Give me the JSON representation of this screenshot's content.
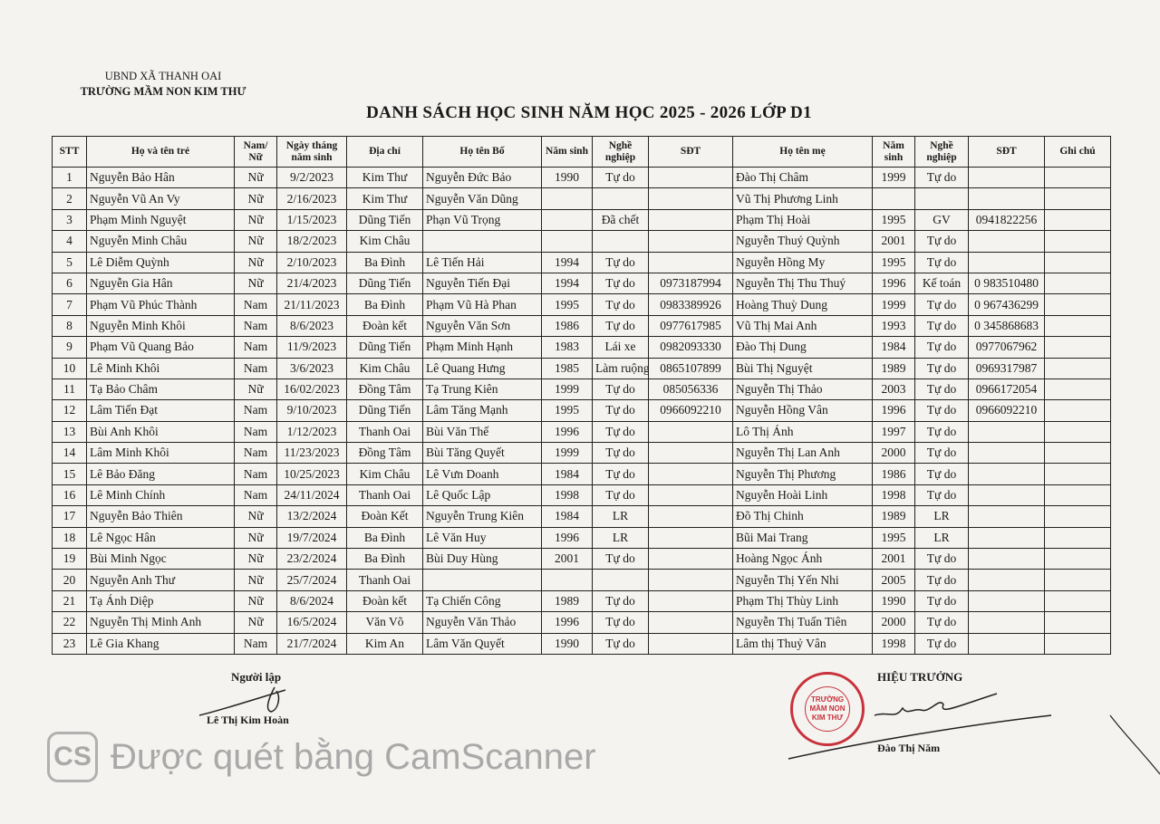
{
  "header": {
    "org_line1": "UBND XÃ THANH OAI",
    "org_line2": "TRƯỜNG MẦM NON KIM THƯ",
    "title": "DANH SÁCH HỌC SINH NĂM HỌC 2025 - 2026  LỚP  D1"
  },
  "table": {
    "columns": [
      "STT",
      "Họ và tên trẻ",
      "Nam/ Nữ",
      "Ngày tháng năm sinh",
      "Địa chỉ",
      "Họ tên Bố",
      "Năm sinh",
      "Nghề nghiệp",
      "SĐT",
      "Họ tên mẹ",
      "Năm sinh",
      "Nghề nghiệp",
      "SĐT",
      "Ghi chú"
    ],
    "rows": [
      [
        "1",
        "Nguyễn Bảo Hân",
        "Nữ",
        "9/2/2023",
        "Kim Thư",
        "Nguyễn Đức Bảo",
        "1990",
        "Tự do",
        "",
        "Đào Thị Châm",
        "1999",
        "Tự do",
        "",
        ""
      ],
      [
        "2",
        "Nguyễn Vũ An Vy",
        "Nữ",
        "2/16/2023",
        "Kim Thư",
        "Nguyễn Văn Dũng",
        "",
        "",
        "",
        "Vũ Thị Phương Linh",
        "",
        "",
        "",
        ""
      ],
      [
        "3",
        "Phạm Minh Nguyệt",
        "Nữ",
        "1/15/2023",
        "Dũng Tiến",
        "Phạn Vũ Trọng",
        "",
        "Đã chết",
        "",
        "Phạm Thị Hoài",
        "1995",
        "GV",
        "0941822256",
        ""
      ],
      [
        "4",
        "Nguyễn Minh Châu",
        "Nữ",
        "18/2/2023",
        "Kim Châu",
        "",
        "",
        "",
        "",
        "Nguyễn Thuý Quỳnh",
        "2001",
        "Tự do",
        "",
        ""
      ],
      [
        "5",
        "Lê Diễm Quỳnh",
        "Nữ",
        "2/10/2023",
        "Ba Đình",
        "Lê Tiến Hải",
        "1994",
        "Tự do",
        "",
        "Nguyễn Hồng My",
        "1995",
        "Tự do",
        "",
        ""
      ],
      [
        "6",
        "Nguyễn Gia Hân",
        "Nữ",
        "21/4/2023",
        "Dũng Tiến",
        "Nguyễn Tiến Đại",
        "1994",
        "Tự do",
        "0973187994",
        "Nguyễn Thị Thu Thuý",
        "1996",
        "Kế toán",
        "0 983510480",
        ""
      ],
      [
        "7",
        "Phạm Vũ Phúc Thành",
        "Nam",
        "21/11/2023",
        "Ba Đình",
        "Phạm Vũ Hà Phan",
        "1995",
        "Tự do",
        "0983389926",
        "Hoàng Thuỳ Dung",
        "1999",
        "Tự do",
        "0 967436299",
        ""
      ],
      [
        "8",
        "Nguyễn Minh Khôi",
        "Nam",
        "8/6/2023",
        "Đoàn kết",
        "Nguyễn Văn Sơn",
        "1986",
        "Tự do",
        "0977617985",
        "Vũ Thị Mai Anh",
        "1993",
        "Tự do",
        "0 345868683",
        ""
      ],
      [
        "9",
        "Phạm Vũ Quang Bảo",
        "Nam",
        "11/9/2023",
        "Dũng Tiến",
        "Phạm Minh Hạnh",
        "1983",
        "Lái xe",
        "0982093330",
        "Đào Thị Dung",
        "1984",
        "Tự do",
        "0977067962",
        ""
      ],
      [
        "10",
        "Lê Minh Khôi",
        "Nam",
        "3/6/2023",
        "Kim Châu",
        "Lê Quang Hưng",
        "1985",
        "Làm ruộng",
        "0865107899",
        "Bùi Thị Nguyệt",
        "1989",
        "Tự do",
        "0969317987",
        ""
      ],
      [
        "11",
        "Tạ Bảo Châm",
        "Nữ",
        "16/02/2023",
        "Đồng Tâm",
        "Tạ Trung Kiên",
        "1999",
        "Tự do",
        "085056336",
        "Nguyễn Thị Thảo",
        "2003",
        "Tự do",
        "0966172054",
        ""
      ],
      [
        "12",
        " Lâm Tiến Đạt",
        "Nam",
        "9/10/2023",
        "Dũng Tiến",
        "Lâm Tăng Mạnh",
        "1995",
        "Tự do",
        "0966092210",
        "Nguyễn Hồng Vân",
        "1996",
        "Tự do",
        "0966092210",
        ""
      ],
      [
        "13",
        "Bùi Anh Khôi",
        "Nam",
        "1/12/2023",
        "Thanh Oai",
        "Bùi Văn Thế",
        "1996",
        "Tự do",
        "",
        "Lô Thị Ánh",
        "1997",
        "Tự do",
        "",
        ""
      ],
      [
        "14",
        "Lâm Minh Khôi",
        "Nam",
        "11/23/2023",
        "Đồng Tâm",
        "Bùi Tăng Quyết",
        "1999",
        "Tự do",
        "",
        "Nguyễn Thị Lan Anh",
        "2000",
        "Tự do",
        "",
        ""
      ],
      [
        "15",
        "Lê Bảo Đăng",
        "Nam",
        "10/25/2023",
        "Kim Châu",
        "Lê Vưn Doanh",
        "1984",
        "Tự do",
        "",
        "Nguyễn Thị Phương",
        "1986",
        "Tự do",
        "",
        ""
      ],
      [
        "16",
        "Lê Minh Chính",
        "Nam",
        "24/11/2024",
        "Thanh Oai",
        "Lê Quốc Lập",
        "1998",
        "Tự do",
        "",
        "Nguyễn Hoài Linh",
        "1998",
        "Tự do",
        "",
        ""
      ],
      [
        "17",
        "Nguyễn Bảo Thiên",
        "Nữ",
        "13/2/2024",
        "Đoàn Kết",
        "Nguyễn Trung Kiên",
        "1984",
        "LR",
        "",
        "Đõ Thị Chinh",
        "1989",
        "LR",
        "",
        ""
      ],
      [
        "18",
        "Lê Ngọc Hân",
        "Nữ",
        "19/7/2024",
        "Ba Đình",
        "Lê Văn Huy",
        "1996",
        "LR",
        "",
        "Bũi Mai Trang",
        "1995",
        "LR",
        "",
        ""
      ],
      [
        "19",
        "Bùi Minh Ngọc",
        "Nữ",
        "23/2/2024",
        "Ba Đình",
        "Bùi Duy Hùng",
        "2001",
        "Tự do",
        "",
        "Hoàng Ngọc Ánh",
        "2001",
        "Tự do",
        "",
        ""
      ],
      [
        "20",
        "Nguyễn Anh Thư",
        "Nữ",
        "25/7/2024",
        "Thanh Oai",
        "",
        "",
        "",
        "",
        "Nguyễn Thị Yến Nhi",
        "2005",
        "Tự do",
        "",
        ""
      ],
      [
        "21",
        "Tạ Ánh Diệp",
        "Nữ",
        "8/6/2024",
        "Đoàn kết",
        "Tạ Chiến Công",
        "1989",
        "Tự do",
        "",
        "Phạm Thị Thùy Linh",
        "1990",
        "Tự do",
        "",
        ""
      ],
      [
        "22",
        "Nguyễn Thị Minh Anh",
        "Nữ",
        "16/5/2024",
        "Văn Võ",
        "Nguyễn Văn Thảo",
        "1996",
        "Tự do",
        "",
        "Nguyễn Thị Tuấn Tiên",
        "2000",
        "Tự do",
        "",
        ""
      ],
      [
        "23",
        "Lê Gia Khang",
        "Nam",
        "21/7/2024",
        "Kim An",
        "Lâm Văn Quyết",
        "1990",
        "Tự do",
        "",
        "Lâm thị Thuỷ Vân",
        "1998",
        "Tự do",
        "",
        ""
      ]
    ]
  },
  "footer": {
    "preparer_title": "Người lập",
    "preparer_name": "Lê Thị Kim Hoàn",
    "principal_title": "HIỆU TRƯỞNG",
    "principal_name": "Đào Thị Năm",
    "stamp_text": "U.B.N.D XÃ THANH OAI T.P TRƯỜNG MẦM NON KIM THƯ",
    "stamp_color": "#c8323c"
  },
  "watermark": {
    "logo": "CS",
    "text": "Được quét bằng CamScanner"
  }
}
